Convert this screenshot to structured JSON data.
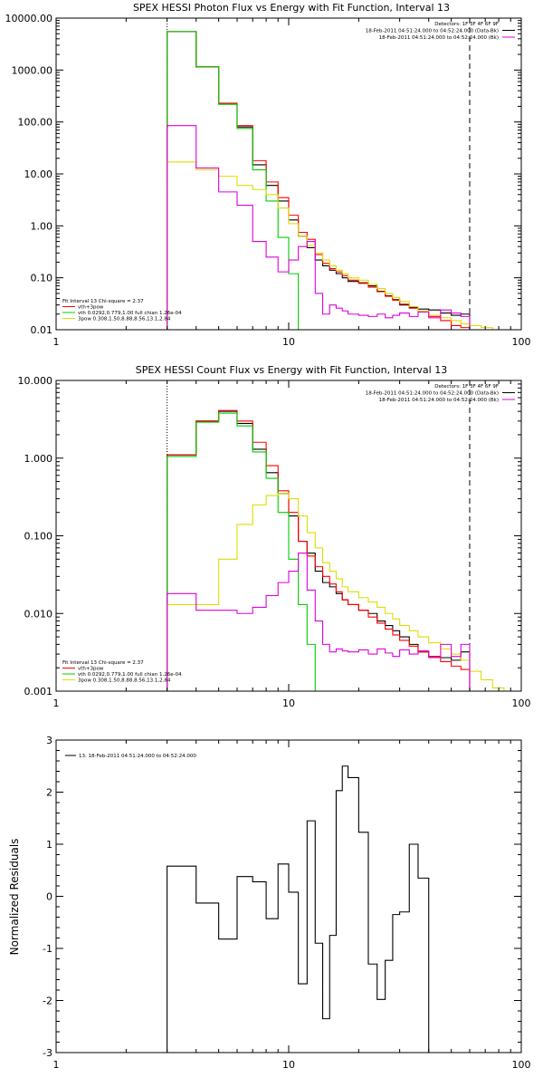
{
  "chart_data": [
    {
      "type": "line",
      "title": "SPEX HESSI Photon Flux vs Energy with Fit Function, Interval 13",
      "xscale": "log",
      "yscale": "log",
      "xlim": [
        1,
        100
      ],
      "ylim": [
        0.01,
        10000
      ],
      "xticks": [
        {
          "v": 1,
          "label": "1"
        },
        {
          "v": 10,
          "label": "10"
        },
        {
          "v": 100,
          "label": "100"
        }
      ],
      "yticks": [
        {
          "v": 0.01,
          "label": "0.01"
        },
        {
          "v": 0.1,
          "label": "0.10"
        },
        {
          "v": 1,
          "label": "1.00"
        },
        {
          "v": 10,
          "label": "10.00"
        },
        {
          "v": 100,
          "label": "100.00"
        },
        {
          "v": 1000,
          "label": "1000.00"
        },
        {
          "v": 10000,
          "label": "10000.00"
        }
      ],
      "vlines": [
        {
          "x": 3,
          "style": "dotted"
        },
        {
          "x": 60,
          "style": "dashed"
        }
      ],
      "legend_top": [
        {
          "text": "Detectors: 1F 3F 4F 6F 9F",
          "color": ""
        },
        {
          "text": "18-Feb-2011 04:51:24.000 to 04:52:24.000 (Data-Bk)",
          "color": "#000000"
        },
        {
          "text": "18-Feb-2011 04:51:24.000 to 04:52:24.000 (Bk)",
          "color": "#dd00dd"
        }
      ],
      "legend_bottom": [
        {
          "text": "Fit Interval 13   Chi-square = 2.37",
          "color": ""
        },
        {
          "text": "vth+3pow",
          "color": "#ff0000"
        },
        {
          "text": "vth 0.0292,0.779,1.00  full chian 1.26e-04",
          "color": "#00cc00"
        },
        {
          "text": "3pow 0.308,1.50,8.88,8.56,13.1,2.84",
          "color": "#dddd00"
        }
      ],
      "edges": [
        3,
        4,
        5,
        6,
        7,
        8,
        9,
        10,
        11,
        12,
        13,
        14,
        15,
        16,
        17,
        18,
        20,
        22,
        24,
        26,
        28,
        30,
        33,
        36,
        40,
        45,
        50,
        55,
        60
      ],
      "series": [
        {
          "color": "#000000",
          "values": [
            5500,
            1150,
            220,
            80,
            15,
            6,
            3.0,
            1.3,
            0.63,
            0.38,
            0.22,
            0.17,
            0.14,
            0.12,
            0.1,
            0.085,
            0.08,
            0.07,
            0.055,
            0.045,
            0.038,
            0.03,
            0.027,
            0.025,
            0.024,
            0.021,
            0.019,
            0.02
          ]
        },
        {
          "color": "#ff0000",
          "values": [
            5500,
            1150,
            230,
            85,
            18,
            7,
            3.5,
            1.6,
            0.75,
            0.55,
            0.28,
            0.19,
            0.15,
            0.13,
            0.11,
            0.09,
            0.078,
            0.066,
            0.054,
            0.044,
            0.037,
            0.031,
            0.026,
            0.022,
            0.018,
            0.015,
            0.012,
            0.011
          ]
        },
        {
          "color": "#00cc00",
          "values": [
            5500,
            1150,
            220,
            75,
            12,
            3.0,
            0.6,
            0.12,
            0.01
          ]
        },
        {
          "color": "#dddd00",
          "values": [
            17,
            12,
            9,
            6,
            5,
            4,
            2.2,
            1.1,
            0.63,
            0.42,
            0.3,
            0.22,
            0.17,
            0.14,
            0.12,
            0.1,
            0.09,
            0.075,
            0.062,
            0.05,
            0.042,
            0.035,
            0.028,
            0.023,
            0.019,
            0.017,
            0.015,
            0.013,
            0.012,
            0.011
          ]
        },
        {
          "color": "#dd00dd",
          "values": [
            85,
            13,
            4.5,
            2.5,
            0.5,
            0.25,
            0.13,
            0.22,
            0.4,
            0.5,
            0.05,
            0.02,
            0.03,
            0.026,
            0.023,
            0.02,
            0.019,
            0.018,
            0.02,
            0.017,
            0.019,
            0.021,
            0.018,
            0.022,
            0.017,
            0.024,
            0.021,
            0.018
          ]
        }
      ]
    },
    {
      "type": "line",
      "title": "SPEX HESSI Count Flux vs Energy with Fit Function, Interval 13",
      "xscale": "log",
      "yscale": "log",
      "xlim": [
        1,
        100
      ],
      "ylim": [
        0.001,
        10
      ],
      "xticks": [
        {
          "v": 1,
          "label": "1"
        },
        {
          "v": 10,
          "label": "10"
        },
        {
          "v": 100,
          "label": "100"
        }
      ],
      "yticks": [
        {
          "v": 0.001,
          "label": "0.001"
        },
        {
          "v": 0.01,
          "label": "0.010"
        },
        {
          "v": 0.1,
          "label": "0.100"
        },
        {
          "v": 1,
          "label": "1.000"
        },
        {
          "v": 10,
          "label": "10.000"
        }
      ],
      "vlines": [
        {
          "x": 3,
          "style": "dotted"
        },
        {
          "x": 60,
          "style": "dashed"
        }
      ],
      "legend_top": [
        {
          "text": "Detectors: 1F 3F 4F 6F 9F",
          "color": ""
        },
        {
          "text": "18-Feb-2011 04:51:24.000 to 04:52:24.000 (Data-Bk)",
          "color": "#000000"
        },
        {
          "text": "18-Feb-2011 04:51:24.000 to 04:52:24.000 (Bk)",
          "color": "#dd00dd"
        }
      ],
      "legend_bottom": [
        {
          "text": "Fit Interval 13   Chi-square = 2.37",
          "color": ""
        },
        {
          "text": "vth+3pow",
          "color": "#ff0000"
        },
        {
          "text": "vth 0.0292,0.779,1.00  full chian 1.26e-04",
          "color": "#00cc00"
        },
        {
          "text": "3pow 0.308,1.50,8.88,8.56,13.1,2.84",
          "color": "#dddd00"
        }
      ],
      "edges": [
        3,
        4,
        5,
        6,
        7,
        8,
        9,
        10,
        11,
        12,
        13,
        14,
        15,
        16,
        17,
        18,
        20,
        22,
        24,
        26,
        28,
        30,
        33,
        36,
        40,
        45,
        50,
        55,
        60
      ],
      "series": [
        {
          "color": "#000000",
          "values": [
            1.1,
            3.0,
            4.0,
            2.8,
            1.3,
            0.65,
            0.35,
            0.18,
            0.085,
            0.06,
            0.035,
            0.025,
            0.022,
            0.018,
            0.015,
            0.013,
            0.011,
            0.01,
            0.008,
            0.007,
            0.006,
            0.005,
            0.004,
            0.0032,
            0.0028,
            0.0027,
            0.0025,
            0.0032
          ]
        },
        {
          "color": "#ff0000",
          "values": [
            1.1,
            3.0,
            4.1,
            3.0,
            1.6,
            0.8,
            0.38,
            0.2,
            0.085,
            0.055,
            0.04,
            0.03,
            0.024,
            0.019,
            0.015,
            0.013,
            0.011,
            0.009,
            0.0075,
            0.0063,
            0.0053,
            0.0045,
            0.0038,
            0.0032,
            0.0028,
            0.0024,
            0.0021,
            0.0019
          ]
        },
        {
          "color": "#00cc00",
          "values": [
            1.05,
            2.9,
            3.8,
            2.6,
            1.2,
            0.55,
            0.2,
            0.05,
            0.013,
            0.004,
            0.001
          ]
        },
        {
          "color": "#dddd00",
          "values": [
            0.013,
            0.013,
            0.05,
            0.14,
            0.25,
            0.33,
            0.35,
            0.3,
            0.18,
            0.11,
            0.07,
            0.045,
            0.035,
            0.028,
            0.022,
            0.019,
            0.016,
            0.014,
            0.012,
            0.01,
            0.0085,
            0.007,
            0.006,
            0.005,
            0.0042,
            0.0035,
            0.003,
            0.0025,
            0.0018,
            0.0014,
            0.0011
          ]
        },
        {
          "color": "#dd00dd",
          "values": [
            0.018,
            0.011,
            0.011,
            0.01,
            0.012,
            0.017,
            0.025,
            0.035,
            0.06,
            0.02,
            0.008,
            0.004,
            0.0032,
            0.0035,
            0.0033,
            0.0032,
            0.0034,
            0.003,
            0.0035,
            0.0031,
            0.0028,
            0.0034,
            0.003,
            0.0033,
            0.0027,
            0.004,
            0.0028,
            0.004
          ]
        }
      ]
    },
    {
      "type": "line",
      "title": "",
      "xscale": "log",
      "yscale": "linear",
      "ylabel": "Normalized Residuals",
      "xlim": [
        1,
        100
      ],
      "ylim": [
        -3,
        3
      ],
      "xticks": [
        {
          "v": 1,
          "label": "1"
        },
        {
          "v": 10,
          "label": "10"
        },
        {
          "v": 100,
          "label": "100"
        }
      ],
      "yticks": [
        {
          "v": -3,
          "label": "-3"
        },
        {
          "v": -2,
          "label": "-2"
        },
        {
          "v": -1,
          "label": "-1"
        },
        {
          "v": 0,
          "label": "0"
        },
        {
          "v": 1,
          "label": "1"
        },
        {
          "v": 2,
          "label": "2"
        },
        {
          "v": 3,
          "label": "3"
        }
      ],
      "legend_top": [],
      "legend_bottom": [],
      "legend": [
        {
          "text": "13. 18-Feb-2011 04:51:24.000 to 04:52:24.000",
          "color": "#000000"
        }
      ],
      "edges": [
        3,
        4,
        5,
        6,
        7,
        8,
        9,
        10,
        11,
        12,
        13,
        14,
        15,
        16,
        17,
        18,
        20,
        22,
        24,
        26,
        28,
        30,
        33,
        36,
        40,
        45,
        50,
        55,
        60
      ],
      "series": [
        {
          "color": "#000000",
          "values": [
            0.58,
            -0.13,
            -0.82,
            0.38,
            0.28,
            -0.43,
            0.62,
            0.08,
            -1.68,
            1.45,
            -0.9,
            -2.35,
            -0.75,
            2.03,
            2.5,
            2.28,
            1.23,
            -1.3,
            -1.98,
            -1.23,
            -0.35,
            -0.3,
            1.0,
            0.35
          ]
        }
      ]
    }
  ]
}
